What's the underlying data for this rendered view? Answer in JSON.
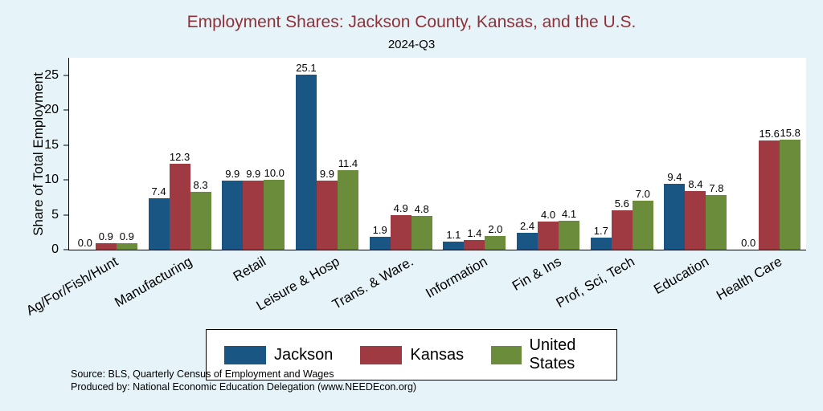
{
  "chart_data": {
    "type": "bar",
    "title": "Employment Shares: Jackson County, Kansas, and the U.S.",
    "subtitle": "2024-Q3",
    "ylabel": "Share of Total Employment",
    "xlabel": "",
    "ylim": [
      0,
      27.5
    ],
    "yticks": [
      0,
      5,
      10,
      15,
      20,
      25
    ],
    "grid": false,
    "legend_position": "bottom",
    "categories": [
      "Ag/For/Fish/Hunt",
      "Manufacturing",
      "Retail",
      "Leisure & Hosp",
      "Trans. & Ware.",
      "Information",
      "Fin & Ins",
      "Prof, Sci, Tech",
      "Education",
      "Health Care"
    ],
    "series": [
      {
        "name": "Jackson",
        "color": "#1a5684",
        "values": [
          0.0,
          7.4,
          9.9,
          25.1,
          1.9,
          1.1,
          2.4,
          1.7,
          9.4,
          0.0
        ]
      },
      {
        "name": "Kansas",
        "color": "#a03a42",
        "values": [
          0.9,
          12.3,
          9.9,
          9.9,
          4.9,
          1.4,
          4.0,
          5.6,
          8.4,
          15.6
        ]
      },
      {
        "name": "United States",
        "color": "#6b8c3a",
        "values": [
          0.9,
          8.3,
          10.0,
          11.4,
          4.8,
          2.0,
          4.1,
          7.0,
          7.8,
          15.8
        ]
      }
    ]
  },
  "footer": {
    "source_line": "Source: BLS, Quarterly Census of Employment and Wages",
    "produced_line": "Produced by: National Economic Education Delegation (www.NEEDEcon.org)"
  },
  "style": {
    "background": "#e6f3f8",
    "plot_background": "#ffffff",
    "title_color": "#8f3138",
    "axis_color": "#000000"
  }
}
